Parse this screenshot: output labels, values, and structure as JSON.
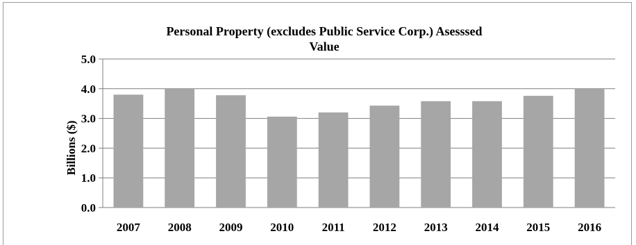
{
  "chart_data": {
    "type": "bar",
    "title_line1": "Personal Property (excludes Public Service Corp.) Asesssed",
    "title_line2": "Value",
    "ylabel": "Billions ($)",
    "xlabel": "",
    "categories": [
      "2007",
      "2008",
      "2009",
      "2010",
      "2011",
      "2012",
      "2013",
      "2014",
      "2015",
      "2016"
    ],
    "values": [
      3.8,
      4.0,
      3.78,
      3.06,
      3.2,
      3.43,
      3.58,
      3.58,
      3.76,
      4.0
    ],
    "ylim": [
      0,
      5
    ],
    "yticks": [
      "0.0",
      "1.0",
      "2.0",
      "3.0",
      "4.0",
      "5.0"
    ],
    "grid": true,
    "bar_color": "#a6a6a6",
    "grid_color": "#7f7f7f"
  }
}
